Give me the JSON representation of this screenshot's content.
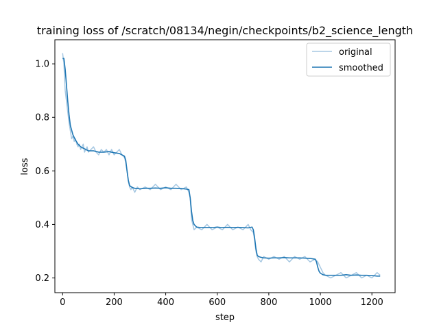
{
  "chart_data": {
    "type": "line",
    "title": "training loss of /scratch/08134/negin/checkpoints/b2_science_length",
    "xlabel": "step",
    "ylabel": "loss",
    "xlim": [
      -30,
      1290
    ],
    "ylim": [
      0.145,
      1.09
    ],
    "xticks": [
      0,
      200,
      400,
      600,
      800,
      1000,
      1200
    ],
    "xtick_labels": [
      "0",
      "200",
      "400",
      "600",
      "800",
      "1000",
      "1200"
    ],
    "yticks": [
      0.2,
      0.4,
      0.6,
      0.8,
      1.0
    ],
    "ytick_labels": [
      "0.2",
      "0.4",
      "0.6",
      "0.8",
      "1.0"
    ],
    "grid": false,
    "legend": "upper right",
    "colors": {
      "original": "#a5c7e2",
      "smoothed": "#1f77b4"
    },
    "series": [
      {
        "name": "original",
        "x": [
          0,
          5,
          10,
          15,
          20,
          25,
          30,
          35,
          40,
          45,
          50,
          55,
          60,
          65,
          70,
          75,
          80,
          85,
          90,
          95,
          100,
          110,
          120,
          130,
          140,
          150,
          160,
          170,
          180,
          190,
          200,
          210,
          220,
          230,
          240,
          245,
          250,
          255,
          260,
          265,
          270,
          280,
          290,
          300,
          320,
          340,
          360,
          380,
          400,
          420,
          440,
          460,
          480,
          490,
          495,
          500,
          505,
          510,
          520,
          540,
          560,
          580,
          600,
          620,
          640,
          660,
          680,
          700,
          720,
          730,
          740,
          745,
          750,
          755,
          760,
          770,
          780,
          800,
          820,
          840,
          860,
          880,
          900,
          920,
          940,
          960,
          980,
          990,
          1000,
          1010,
          1020,
          1040,
          1060,
          1080,
          1100,
          1120,
          1140,
          1160,
          1180,
          1200,
          1220,
          1232
        ],
        "values": [
          1.04,
          1.0,
          0.9,
          0.86,
          0.82,
          0.78,
          0.75,
          0.72,
          0.73,
          0.71,
          0.72,
          0.7,
          0.69,
          0.7,
          0.68,
          0.69,
          0.7,
          0.67,
          0.68,
          0.69,
          0.67,
          0.68,
          0.69,
          0.67,
          0.66,
          0.68,
          0.67,
          0.68,
          0.66,
          0.68,
          0.66,
          0.67,
          0.68,
          0.66,
          0.65,
          0.63,
          0.6,
          0.56,
          0.54,
          0.53,
          0.54,
          0.52,
          0.54,
          0.53,
          0.54,
          0.53,
          0.55,
          0.53,
          0.54,
          0.53,
          0.55,
          0.53,
          0.54,
          0.52,
          0.5,
          0.42,
          0.4,
          0.38,
          0.39,
          0.38,
          0.4,
          0.38,
          0.39,
          0.38,
          0.4,
          0.38,
          0.39,
          0.38,
          0.4,
          0.38,
          0.37,
          0.34,
          0.3,
          0.28,
          0.27,
          0.26,
          0.28,
          0.27,
          0.28,
          0.27,
          0.28,
          0.26,
          0.28,
          0.27,
          0.28,
          0.26,
          0.27,
          0.26,
          0.24,
          0.22,
          0.21,
          0.2,
          0.21,
          0.22,
          0.2,
          0.21,
          0.22,
          0.2,
          0.21,
          0.2,
          0.22,
          0.21
        ]
      },
      {
        "name": "smoothed",
        "x": [
          0,
          5,
          10,
          15,
          20,
          25,
          30,
          40,
          50,
          60,
          70,
          80,
          90,
          100,
          120,
          140,
          160,
          180,
          200,
          220,
          240,
          245,
          250,
          255,
          260,
          270,
          280,
          300,
          320,
          340,
          360,
          380,
          400,
          420,
          440,
          460,
          480,
          490,
          495,
          500,
          505,
          510,
          520,
          540,
          560,
          580,
          600,
          620,
          640,
          660,
          680,
          700,
          720,
          735,
          740,
          745,
          750,
          755,
          760,
          770,
          780,
          800,
          820,
          840,
          860,
          880,
          900,
          920,
          940,
          960,
          980,
          985,
          990,
          995,
          1000,
          1010,
          1020,
          1040,
          1060,
          1080,
          1100,
          1120,
          1140,
          1160,
          1180,
          1200,
          1220,
          1232
        ],
        "values": [
          1.02,
          1.02,
          0.98,
          0.92,
          0.86,
          0.81,
          0.77,
          0.735,
          0.715,
          0.7,
          0.69,
          0.685,
          0.68,
          0.675,
          0.675,
          0.67,
          0.67,
          0.672,
          0.668,
          0.665,
          0.655,
          0.64,
          0.6,
          0.565,
          0.545,
          0.538,
          0.535,
          0.533,
          0.535,
          0.535,
          0.536,
          0.535,
          0.537,
          0.535,
          0.535,
          0.534,
          0.532,
          0.53,
          0.5,
          0.45,
          0.415,
          0.4,
          0.39,
          0.388,
          0.388,
          0.388,
          0.39,
          0.388,
          0.389,
          0.388,
          0.389,
          0.388,
          0.387,
          0.39,
          0.38,
          0.35,
          0.31,
          0.285,
          0.28,
          0.277,
          0.275,
          0.274,
          0.275,
          0.275,
          0.276,
          0.275,
          0.275,
          0.275,
          0.274,
          0.273,
          0.27,
          0.26,
          0.24,
          0.225,
          0.218,
          0.212,
          0.21,
          0.21,
          0.21,
          0.21,
          0.212,
          0.21,
          0.211,
          0.21,
          0.21,
          0.209,
          0.207,
          0.207
        ]
      }
    ]
  }
}
